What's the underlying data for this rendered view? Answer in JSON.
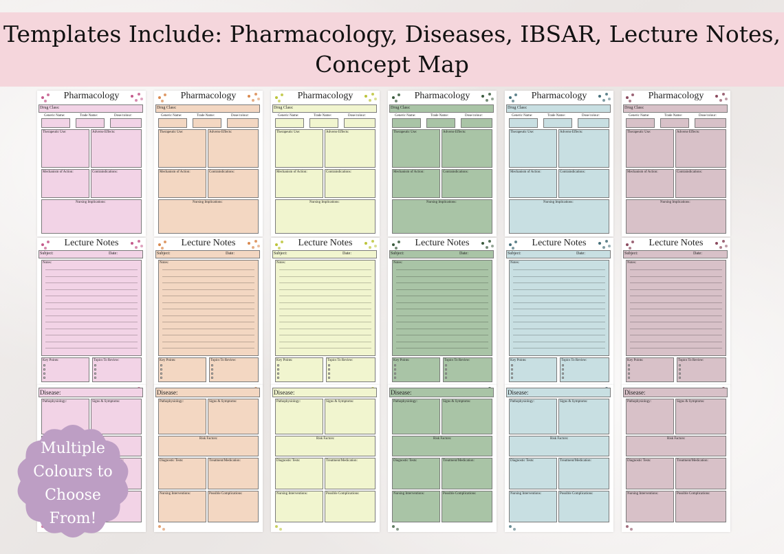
{
  "banner": {
    "line1": "Templates Include: Pharmacology, Diseases, IBSAR, Lecture Notes,",
    "line2": "Concept Map"
  },
  "badge": {
    "text_lines": [
      "Multiple",
      "Colours to",
      "Choose",
      "From!"
    ],
    "color": "#bd9ec4"
  },
  "palettes": [
    {
      "name": "pink",
      "fill": "#f2d3e6",
      "dot": "#c45a8c"
    },
    {
      "name": "peach",
      "fill": "#f3d7c2",
      "dot": "#d9894f"
    },
    {
      "name": "yellow",
      "fill": "#f1f5cf",
      "dot": "#bcc43a"
    },
    {
      "name": "green",
      "fill": "#a9c4a6",
      "dot": "#3a5b3d"
    },
    {
      "name": "blue",
      "fill": "#c8dfe2",
      "dot": "#46707a"
    },
    {
      "name": "mauve",
      "fill": "#d8c1c8",
      "dot": "#8b4a5e"
    }
  ],
  "pharmacology": {
    "title": "Pharmacology",
    "drug_class": "Drug Class:",
    "generic": "Generic Name:",
    "trade": "Trade Name:",
    "dose": "Dose/colour:",
    "therapeutic": "Therapeutic Use:",
    "adverse": "Adverse Effects:",
    "mechanism": "Mechanism of Action:",
    "contra": "Contraindications:",
    "nursing": "Nursing Implications:"
  },
  "lecture": {
    "title": "Lecture Notes",
    "subject": "Subject:",
    "date": "Date:",
    "notes": "Notes:",
    "key_points": "Key Points:",
    "topics": "Topics To Review:"
  },
  "disease": {
    "title": "Disease:",
    "patho": "Pathophysiology:",
    "signs": "Signs & Symptoms:",
    "risk": "Risk Factors:",
    "diagnostic": "Diagnostic Tests:",
    "treatment": "Treatment/Medication:",
    "nursing_int": "Nursing Interventions:",
    "complications": "Possible Complications:"
  }
}
